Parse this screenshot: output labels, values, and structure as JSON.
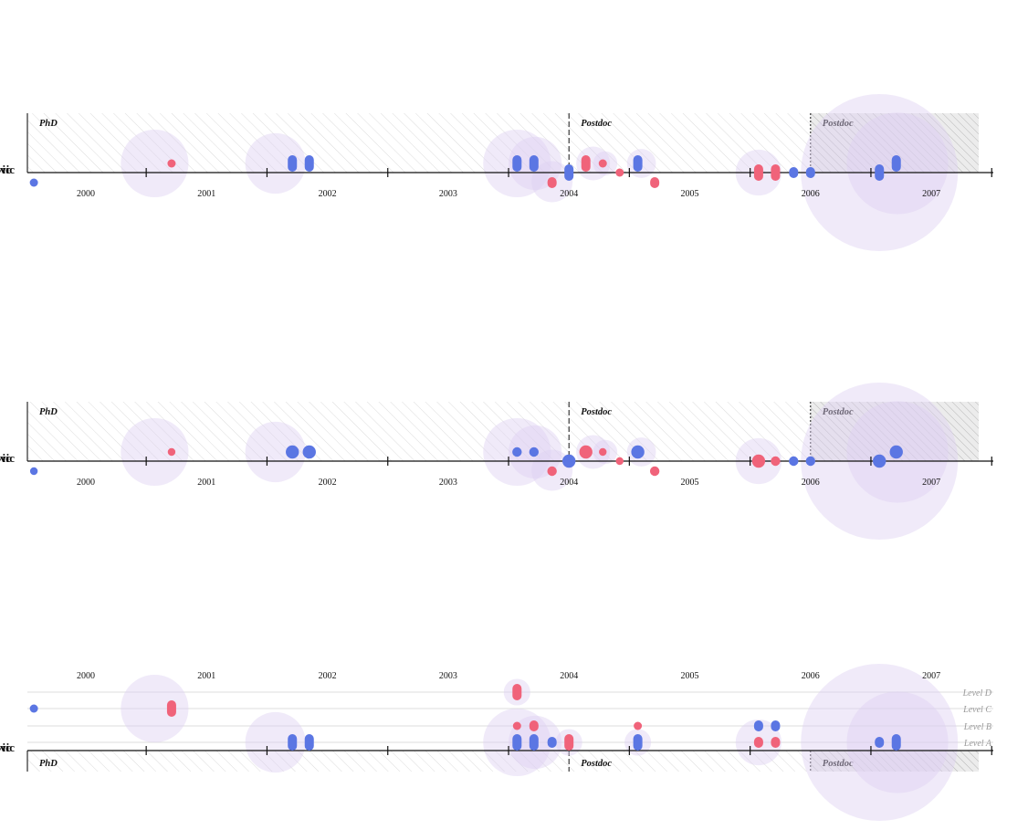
{
  "chart_data": [
    {
      "type": "scatter",
      "title": "",
      "person": "vic",
      "axis": {
        "ticks": [
          "2000",
          "2001",
          "2002",
          "2003",
          "2004",
          "2005",
          "2006",
          "2007"
        ],
        "xlim": [
          1999.5,
          2007.4
        ]
      },
      "periods": [
        {
          "label": "PhD",
          "start": 1999.5,
          "end": 2004.0,
          "style": "light-hatch"
        },
        {
          "label": "Postdoc",
          "start": 2004.0,
          "end": 2006.0,
          "style": "light-hatch"
        },
        {
          "label": "Postdoc",
          "start": 2006.0,
          "end": 2007.4,
          "style": "dark-hatch"
        }
      ],
      "halos": [
        {
          "x": 2000.57,
          "r": 0.28,
          "dy": -1
        },
        {
          "x": 2001.57,
          "r": 0.25,
          "dy": -1
        },
        {
          "x": 2003.57,
          "r": 0.28,
          "dy": -1
        },
        {
          "x": 2003.72,
          "r": 0.22,
          "dy": -1
        },
        {
          "x": 2003.86,
          "r": 0.17,
          "dy": 1
        },
        {
          "x": 2004.2,
          "r": 0.14,
          "dy": -1
        },
        {
          "x": 2004.3,
          "r": 0.1,
          "dy": -1
        },
        {
          "x": 2004.6,
          "r": 0.12,
          "dy": -1
        },
        {
          "x": 2005.57,
          "r": 0.19,
          "dy": 0
        },
        {
          "x": 2006.57,
          "r": 0.65,
          "dy": 0
        },
        {
          "x": 2006.72,
          "r": 0.42,
          "dy": -1
        }
      ],
      "points": [
        {
          "x": 1999.57,
          "dy": 1,
          "kind": "blue",
          "n": 1
        },
        {
          "x": 2000.71,
          "dy": -1,
          "kind": "red",
          "n": 1
        },
        {
          "x": 2001.71,
          "dy": -1,
          "kind": "blue",
          "n": 3
        },
        {
          "x": 2001.85,
          "dy": -1,
          "kind": "blue",
          "n": 3
        },
        {
          "x": 2003.57,
          "dy": -1,
          "kind": "blue",
          "n": 3
        },
        {
          "x": 2003.71,
          "dy": -1,
          "kind": "blue",
          "n": 3
        },
        {
          "x": 2003.86,
          "dy": 1,
          "kind": "red",
          "n": 2
        },
        {
          "x": 2004.0,
          "dy": 0,
          "kind": "blue",
          "n": 3
        },
        {
          "x": 2004.14,
          "dy": -1,
          "kind": "red",
          "n": 3
        },
        {
          "x": 2004.28,
          "dy": -1,
          "kind": "red",
          "n": 1
        },
        {
          "x": 2004.42,
          "dy": 0,
          "kind": "red",
          "n": 1
        },
        {
          "x": 2004.57,
          "dy": -1,
          "kind": "blue",
          "n": 3
        },
        {
          "x": 2004.71,
          "dy": 1,
          "kind": "red",
          "n": 2
        },
        {
          "x": 2005.57,
          "dy": 0,
          "kind": "red",
          "n": 3
        },
        {
          "x": 2005.71,
          "dy": 0,
          "kind": "red",
          "n": 3
        },
        {
          "x": 2005.86,
          "dy": 0,
          "kind": "blue",
          "n": 2
        },
        {
          "x": 2006.0,
          "dy": 0,
          "kind": "blue",
          "n": 2
        },
        {
          "x": 2006.57,
          "dy": 0,
          "kind": "blue",
          "n": 3
        },
        {
          "x": 2006.71,
          "dy": -1,
          "kind": "blue",
          "n": 3
        }
      ]
    },
    {
      "type": "scatter",
      "title": "",
      "person": "vic",
      "axis": {
        "ticks": [
          "2000",
          "2001",
          "2002",
          "2003",
          "2004",
          "2005",
          "2006",
          "2007"
        ],
        "xlim": [
          1999.5,
          2007.4
        ]
      },
      "periods": [
        {
          "label": "PhD",
          "start": 1999.5,
          "end": 2004.0,
          "style": "light-hatch"
        },
        {
          "label": "Postdoc",
          "start": 2004.0,
          "end": 2006.0,
          "style": "light-hatch"
        },
        {
          "label": "Postdoc",
          "start": 2006.0,
          "end": 2007.4,
          "style": "dark-hatch"
        }
      ],
      "halos": [
        {
          "x": 2000.57,
          "r": 0.28,
          "dy": -1
        },
        {
          "x": 2001.57,
          "r": 0.25,
          "dy": -1
        },
        {
          "x": 2003.57,
          "r": 0.28,
          "dy": -1
        },
        {
          "x": 2003.72,
          "r": 0.22,
          "dy": -1
        },
        {
          "x": 2003.86,
          "r": 0.17,
          "dy": 1
        },
        {
          "x": 2004.2,
          "r": 0.14,
          "dy": -1
        },
        {
          "x": 2004.3,
          "r": 0.1,
          "dy": -1
        },
        {
          "x": 2004.6,
          "r": 0.12,
          "dy": -1
        },
        {
          "x": 2005.57,
          "r": 0.19,
          "dy": 0
        },
        {
          "x": 2006.57,
          "r": 0.65,
          "dy": 0
        },
        {
          "x": 2006.72,
          "r": 0.42,
          "dy": -1
        }
      ],
      "points": [
        {
          "x": 1999.57,
          "dy": 1,
          "kind": "blue",
          "s": 1
        },
        {
          "x": 2000.71,
          "dy": -1,
          "kind": "red",
          "s": 1
        },
        {
          "x": 2001.71,
          "dy": -1,
          "kind": "blue",
          "s": 3
        },
        {
          "x": 2001.85,
          "dy": -1,
          "kind": "blue",
          "s": 3
        },
        {
          "x": 2003.57,
          "dy": -1,
          "kind": "blue",
          "s": 2
        },
        {
          "x": 2003.71,
          "dy": -1,
          "kind": "blue",
          "s": 2
        },
        {
          "x": 2003.86,
          "dy": 1,
          "kind": "red",
          "s": 2
        },
        {
          "x": 2004.0,
          "dy": 0,
          "kind": "blue",
          "s": 3
        },
        {
          "x": 2004.14,
          "dy": -1,
          "kind": "red",
          "s": 3
        },
        {
          "x": 2004.28,
          "dy": -1,
          "kind": "red",
          "s": 1
        },
        {
          "x": 2004.42,
          "dy": 0,
          "kind": "red",
          "s": 1
        },
        {
          "x": 2004.57,
          "dy": -1,
          "kind": "blue",
          "s": 3
        },
        {
          "x": 2004.71,
          "dy": 1,
          "kind": "red",
          "s": 2
        },
        {
          "x": 2005.57,
          "dy": 0,
          "kind": "red",
          "s": 3
        },
        {
          "x": 2005.71,
          "dy": 0,
          "kind": "red",
          "s": 2
        },
        {
          "x": 2005.86,
          "dy": 0,
          "kind": "blue",
          "s": 2
        },
        {
          "x": 2006.0,
          "dy": 0,
          "kind": "blue",
          "s": 2
        },
        {
          "x": 2006.57,
          "dy": 0,
          "kind": "blue",
          "s": 3
        },
        {
          "x": 2006.71,
          "dy": -1,
          "kind": "blue",
          "s": 3
        }
      ]
    },
    {
      "type": "scatter",
      "title": "",
      "person": "vic",
      "axis": {
        "ticks": [
          "2000",
          "2001",
          "2002",
          "2003",
          "2004",
          "2005",
          "2006",
          "2007"
        ],
        "xlim": [
          1999.5,
          2007.4
        ],
        "placement": "top"
      },
      "levels": [
        "Level D",
        "Level C",
        "Level B",
        "Level A"
      ],
      "periods": [
        {
          "label": "PhD",
          "start": 1999.5,
          "end": 2004.0,
          "style": "light-hatch"
        },
        {
          "label": "Postdoc",
          "start": 2004.0,
          "end": 2006.0,
          "style": "light-hatch"
        },
        {
          "label": "Postdoc",
          "start": 2006.0,
          "end": 2007.4,
          "style": "dark-hatch"
        }
      ],
      "halos": [
        {
          "x": 2000.57,
          "r": 0.28,
          "level": "Level C"
        },
        {
          "x": 2001.57,
          "r": 0.25,
          "level": "Level A"
        },
        {
          "x": 2003.57,
          "r": 0.28,
          "level": "Level A"
        },
        {
          "x": 2003.72,
          "r": 0.22,
          "level": "Level A"
        },
        {
          "x": 2003.57,
          "r": 0.11,
          "level": "Level D"
        },
        {
          "x": 2004.0,
          "r": 0.11,
          "level": "Level A"
        },
        {
          "x": 2004.57,
          "r": 0.11,
          "level": "Level A"
        },
        {
          "x": 2005.57,
          "r": 0.19,
          "level": "Level A"
        },
        {
          "x": 2006.57,
          "r": 0.65,
          "level": "Level A"
        },
        {
          "x": 2006.72,
          "r": 0.42,
          "level": "Level A"
        }
      ],
      "points": [
        {
          "x": 1999.57,
          "level": "Level C",
          "kind": "blue",
          "n": 1
        },
        {
          "x": 2000.71,
          "level": "Level C",
          "kind": "red",
          "n": 3
        },
        {
          "x": 2001.71,
          "level": "Level A",
          "kind": "blue",
          "n": 3
        },
        {
          "x": 2001.85,
          "level": "Level A",
          "kind": "blue",
          "n": 3
        },
        {
          "x": 2003.57,
          "level": "Level D",
          "kind": "red",
          "n": 3
        },
        {
          "x": 2003.57,
          "level": "Level B",
          "kind": "red",
          "n": 1
        },
        {
          "x": 2003.57,
          "level": "Level A",
          "kind": "blue",
          "n": 3
        },
        {
          "x": 2003.71,
          "level": "Level B",
          "kind": "red",
          "n": 2
        },
        {
          "x": 2003.71,
          "level": "Level A",
          "kind": "blue",
          "n": 3
        },
        {
          "x": 2003.86,
          "level": "Level A",
          "kind": "blue",
          "n": 2
        },
        {
          "x": 2004.0,
          "level": "Level A",
          "kind": "red",
          "n": 3
        },
        {
          "x": 2004.57,
          "level": "Level B",
          "kind": "red",
          "n": 1
        },
        {
          "x": 2004.57,
          "level": "Level A",
          "kind": "blue",
          "n": 3
        },
        {
          "x": 2005.57,
          "level": "Level B",
          "kind": "blue",
          "n": 2
        },
        {
          "x": 2005.71,
          "level": "Level B",
          "kind": "blue",
          "n": 2
        },
        {
          "x": 2005.57,
          "level": "Level A",
          "kind": "red",
          "n": 2
        },
        {
          "x": 2005.71,
          "level": "Level A",
          "kind": "red",
          "n": 2
        },
        {
          "x": 2006.57,
          "level": "Level A",
          "kind": "blue",
          "n": 2
        },
        {
          "x": 2006.71,
          "level": "Level A",
          "kind": "blue",
          "n": 3
        }
      ]
    }
  ],
  "colors": {
    "blue": "#5b76e3",
    "red": "#f0637a",
    "halo": "#ddd0f2",
    "axis": "#111111",
    "hatch_light": "#dcdcdc",
    "hatch_dark": "#b5b5b5",
    "band_dark": "#ececec",
    "level_line": "#dddddd"
  }
}
